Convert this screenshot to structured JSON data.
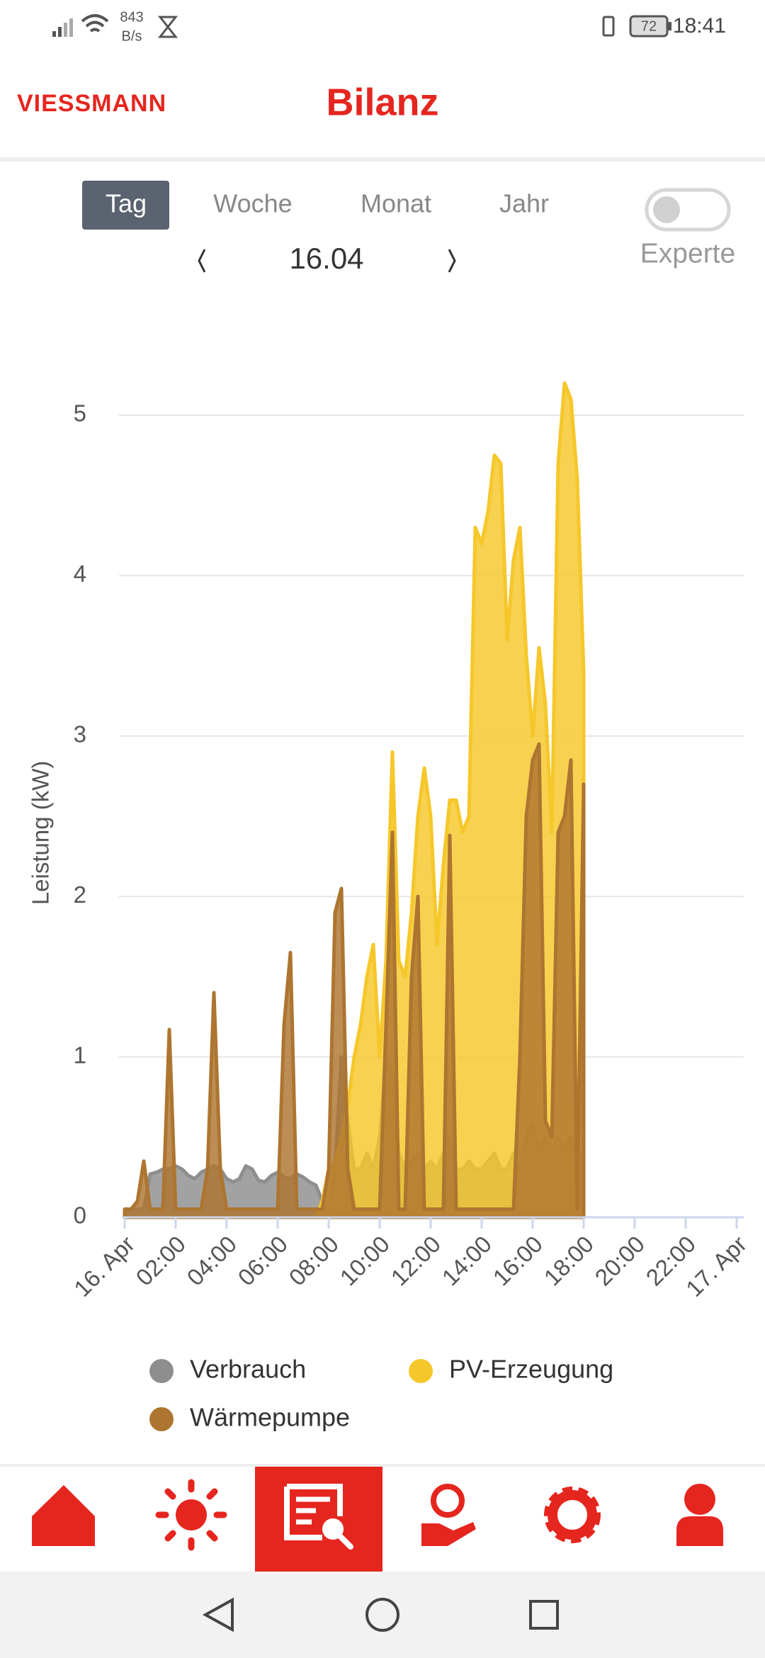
{
  "status_bar": {
    "speed": "843",
    "speed_unit": "B/s",
    "battery": "72",
    "time": "18:41"
  },
  "header": {
    "logo": "VIESSMANN",
    "title": "Bilanz"
  },
  "tabs": [
    "Tag",
    "Woche",
    "Monat",
    "Jahr"
  ],
  "toggle": {
    "label": "Experte"
  },
  "date_nav": {
    "date": "16.04"
  },
  "chart_data": {
    "type": "area",
    "y_label": "Leistung (kW)",
    "x": [
      0,
      0.25,
      0.5,
      0.75,
      1,
      1.25,
      1.5,
      1.75,
      2,
      2.25,
      2.5,
      2.75,
      3,
      3.25,
      3.5,
      3.75,
      4,
      4.25,
      4.5,
      4.75,
      5,
      5.25,
      5.5,
      5.75,
      6,
      6.25,
      6.5,
      6.75,
      7,
      7.25,
      7.5,
      7.75,
      8,
      8.25,
      8.5,
      8.75,
      9,
      9.25,
      9.5,
      9.75,
      10,
      10.25,
      10.5,
      10.75,
      11,
      11.25,
      11.5,
      11.75,
      12,
      12.25,
      12.5,
      12.75,
      13,
      13.25,
      13.5,
      13.75,
      14,
      14.25,
      14.5,
      14.75,
      15,
      15.25,
      15.5,
      15.75,
      16,
      16.25,
      16.5,
      16.75,
      17,
      17.25,
      17.5,
      17.75,
      18
    ],
    "xlim": [
      0,
      24
    ],
    "xticks": [
      {
        "value": 0,
        "label": "16. Apr"
      },
      {
        "value": 2,
        "label": "02:00"
      },
      {
        "value": 4,
        "label": "04:00"
      },
      {
        "value": 6,
        "label": "06:00"
      },
      {
        "value": 8,
        "label": "08:00"
      },
      {
        "value": 10,
        "label": "10:00"
      },
      {
        "value": 12,
        "label": "12:00"
      },
      {
        "value": 14,
        "label": "14:00"
      },
      {
        "value": 16,
        "label": "16:00"
      },
      {
        "value": 18,
        "label": "18:00"
      },
      {
        "value": 20,
        "label": "20:00"
      },
      {
        "value": 22,
        "label": "22:00"
      },
      {
        "value": 24,
        "label": "17. Apr"
      }
    ],
    "ylim": [
      0,
      5.5
    ],
    "yticks": [
      0,
      1,
      2,
      3,
      4,
      5
    ],
    "grid": true,
    "series": [
      {
        "name": "Verbrauch",
        "color": "#8e8e8e",
        "values": [
          0.05,
          0.05,
          0.05,
          0.05,
          0.27,
          0.28,
          0.3,
          0.3,
          0.32,
          0.3,
          0.26,
          0.24,
          0.28,
          0.3,
          0.32,
          0.3,
          0.24,
          0.22,
          0.24,
          0.32,
          0.3,
          0.23,
          0.22,
          0.26,
          0.28,
          0.25,
          0.24,
          0.27,
          0.25,
          0.22,
          0.2,
          0.1,
          0.05,
          0.3,
          1.0,
          0.6,
          0.3,
          0.3,
          0.4,
          0.3,
          0.5,
          1.0,
          0.9,
          0.4,
          0.3,
          0.35,
          0.4,
          0.3,
          0.35,
          0.3,
          0.4,
          0.5,
          0.3,
          0.3,
          0.35,
          0.3,
          0.3,
          0.35,
          0.4,
          0.3,
          0.3,
          0.4,
          0.3,
          0.5,
          0.6,
          0.4,
          0.5,
          0.4,
          0.5,
          0.4,
          0.5,
          0.4,
          0.4
        ]
      },
      {
        "name": "PV-Erzeugung",
        "color": "#f6c72a",
        "values": [
          0,
          0,
          0,
          0,
          0,
          0,
          0,
          0,
          0,
          0,
          0,
          0,
          0,
          0,
          0,
          0,
          0,
          0,
          0,
          0,
          0,
          0,
          0,
          0,
          0,
          0,
          0,
          0,
          0,
          0,
          0,
          0.1,
          0.3,
          0.35,
          0.5,
          0.7,
          1.0,
          1.2,
          1.5,
          1.7,
          1.0,
          1.6,
          2.9,
          1.6,
          1.5,
          1.9,
          2.5,
          2.8,
          2.5,
          1.7,
          2.2,
          2.6,
          2.6,
          2.4,
          2.5,
          4.3,
          4.2,
          4.4,
          4.75,
          4.7,
          3.6,
          4.1,
          4.3,
          3.5,
          3.0,
          3.55,
          3.2,
          2.4,
          4.7,
          5.2,
          5.1,
          4.6,
          3.4
        ]
      },
      {
        "name": "Wärmepumpe",
        "color": "#ad7530",
        "values": [
          0.05,
          0.05,
          0.1,
          0.35,
          0.05,
          0.05,
          0.05,
          1.17,
          0.05,
          0.05,
          0.05,
          0.05,
          0.05,
          0.3,
          1.4,
          0.3,
          0.05,
          0.05,
          0.05,
          0.05,
          0.05,
          0.05,
          0.05,
          0.05,
          0.05,
          1.2,
          1.65,
          0.05,
          0.05,
          0.05,
          0.05,
          0.05,
          0.3,
          1.9,
          2.05,
          0.3,
          0.05,
          0.05,
          0.05,
          0.05,
          0.05,
          1.2,
          2.4,
          0.05,
          0.05,
          1.5,
          2.0,
          0.05,
          0.05,
          0.05,
          0.05,
          2.38,
          0.05,
          0.05,
          0.05,
          0.05,
          0.05,
          0.05,
          0.05,
          0.05,
          0.05,
          0.05,
          1.0,
          2.5,
          2.85,
          2.95,
          0.6,
          0.5,
          2.4,
          2.5,
          2.85,
          0.05,
          2.7
        ]
      }
    ]
  }
}
